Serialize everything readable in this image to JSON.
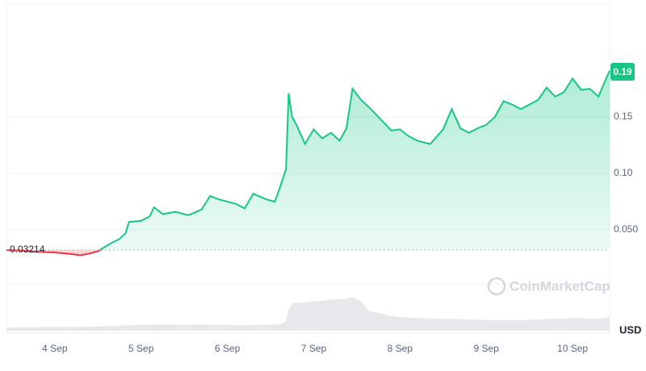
{
  "chart_data": {
    "type": "line",
    "x": [
      3.44,
      3.6,
      3.8,
      4.0,
      4.2,
      4.3,
      4.4,
      4.5,
      4.55,
      4.65,
      4.75,
      4.82,
      4.86,
      5.0,
      5.1,
      5.15,
      5.25,
      5.4,
      5.55,
      5.7,
      5.8,
      5.9,
      6.0,
      6.1,
      6.2,
      6.3,
      6.45,
      6.55,
      6.62,
      6.68,
      6.71,
      6.75,
      6.8,
      6.9,
      7.0,
      7.1,
      7.2,
      7.3,
      7.38,
      7.45,
      7.55,
      7.65,
      7.8,
      7.9,
      8.0,
      8.1,
      8.2,
      8.35,
      8.5,
      8.6,
      8.7,
      8.8,
      8.9,
      9.0,
      9.1,
      9.2,
      9.3,
      9.4,
      9.5,
      9.6,
      9.7,
      9.8,
      9.9,
      10.0,
      10.1,
      10.2,
      10.3,
      10.4,
      10.43
    ],
    "series": [
      {
        "color": "#16c784",
        "below_color": "#ea3943",
        "values": [
          0.0321,
          0.0318,
          0.0305,
          0.03,
          0.0285,
          0.0275,
          0.029,
          0.031,
          0.0335,
          0.038,
          0.042,
          0.047,
          0.057,
          0.058,
          0.062,
          0.07,
          0.064,
          0.066,
          0.063,
          0.068,
          0.08,
          0.077,
          0.075,
          0.073,
          0.069,
          0.082,
          0.077,
          0.075,
          0.09,
          0.104,
          0.171,
          0.15,
          0.143,
          0.126,
          0.139,
          0.131,
          0.136,
          0.129,
          0.14,
          0.175,
          0.165,
          0.158,
          0.146,
          0.138,
          0.139,
          0.133,
          0.129,
          0.126,
          0.139,
          0.157,
          0.14,
          0.136,
          0.14,
          0.143,
          0.15,
          0.164,
          0.161,
          0.157,
          0.161,
          0.165,
          0.176,
          0.168,
          0.172,
          0.184,
          0.174,
          0.175,
          0.168,
          0.186,
          0.191
        ]
      }
    ],
    "volume": {
      "color": "#e6e8ec",
      "values": [
        6,
        7,
        7,
        8,
        7,
        8,
        8,
        9,
        9,
        10,
        10,
        11,
        11,
        12,
        12,
        13,
        13,
        12,
        12,
        13,
        12,
        12,
        12,
        11,
        11,
        12,
        12,
        13,
        14,
        20,
        45,
        55,
        58,
        58,
        60,
        62,
        64,
        65,
        66,
        70,
        60,
        40,
        35,
        30,
        28,
        27,
        26,
        25,
        24,
        24,
        24,
        23,
        23,
        22,
        22,
        22,
        22,
        22,
        22,
        23,
        24,
        25,
        25,
        26,
        26,
        25,
        25,
        27,
        30
      ],
      "ylim": [
        0,
        100
      ],
      "unit": "USD"
    },
    "baseline": 0.03214,
    "last_price": 0.19,
    "xlim": [
      3.44,
      10.43
    ],
    "xticks": [
      {
        "value": 4,
        "label": "4 Sep"
      },
      {
        "value": 5,
        "label": "5 Sep"
      },
      {
        "value": 6,
        "label": "6 Sep"
      },
      {
        "value": 7,
        "label": "7 Sep"
      },
      {
        "value": 8,
        "label": "8 Sep"
      },
      {
        "value": 9,
        "label": "9 Sep"
      },
      {
        "value": 10,
        "label": "10 Sep"
      }
    ],
    "ylim": [
      0,
      0.25
    ],
    "yticks": [
      {
        "value": 0.05,
        "label": "0.050"
      },
      {
        "value": 0.1,
        "label": "0.10"
      },
      0.15
    ],
    "grid": true,
    "watermark": "CoinMarketCap"
  }
}
